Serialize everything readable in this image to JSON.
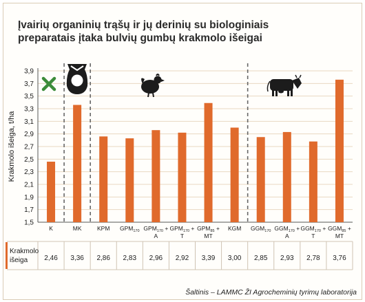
{
  "title_lines": [
    "Įvairių organinių trąšų ir jų derinių su biologiniais",
    "preparatais įtaka bulvių gumbų krakmolo išeigai"
  ],
  "source": "Šaltinis – LAMMC ŽI Agrocheminių tyrimų laboratorija",
  "colors": {
    "bar": "#e06a2c",
    "grid": "#e8d8c0",
    "text": "#1a1a1a",
    "separator": "#666666"
  },
  "icons": [
    "cross-icon",
    "sewage-sludge-bag-icon",
    "chicken-icon",
    "cow-icon"
  ],
  "chart_data": {
    "type": "bar",
    "ylabel": "Krakmolo išeiga, t/ha",
    "ylim": [
      1.5,
      3.9
    ],
    "yticks": [
      "1,5",
      "1,7",
      "1,9",
      "2,1",
      "2,3",
      "2,5",
      "2,7",
      "2,9",
      "3,1",
      "3,3",
      "3,5",
      "3,7",
      "3,9"
    ],
    "categories": [
      {
        "main": "K",
        "sub": "",
        "suffix": ""
      },
      {
        "main": "MK",
        "sub": "",
        "suffix": ""
      },
      {
        "main": "KPM",
        "sub": "",
        "suffix": ""
      },
      {
        "main": "GPM",
        "sub": "170",
        "suffix": ""
      },
      {
        "main": "GPM",
        "sub": "170",
        "suffix": " +",
        "line2": "A"
      },
      {
        "main": "GPM",
        "sub": "170",
        "suffix": " +",
        "line2": "T"
      },
      {
        "main": "GPM",
        "sub": "85",
        "suffix": " +",
        "line2": "MT"
      },
      {
        "main": "KGM",
        "sub": "",
        "suffix": ""
      },
      {
        "main": "GGM",
        "sub": "170",
        "suffix": ""
      },
      {
        "main": "GGM",
        "sub": "170",
        "suffix": " +",
        "line2": "A"
      },
      {
        "main": "GGM",
        "sub": "170",
        "suffix": " +",
        "line2": "T"
      },
      {
        "main": "GGM",
        "sub": "85",
        "suffix": " +",
        "line2": "MT"
      }
    ],
    "values": [
      2.46,
      3.36,
      2.86,
      2.83,
      2.96,
      2.92,
      3.39,
      3.0,
      2.85,
      2.93,
      2.78,
      3.76
    ],
    "value_labels": [
      "2,46",
      "3,36",
      "2,86",
      "2,83",
      "2,96",
      "2,92",
      "3,39",
      "3,00",
      "2,85",
      "2,93",
      "2,78",
      "3,76"
    ],
    "table_row_label": [
      "Krakmolo",
      "išeiga"
    ],
    "grid": true
  }
}
